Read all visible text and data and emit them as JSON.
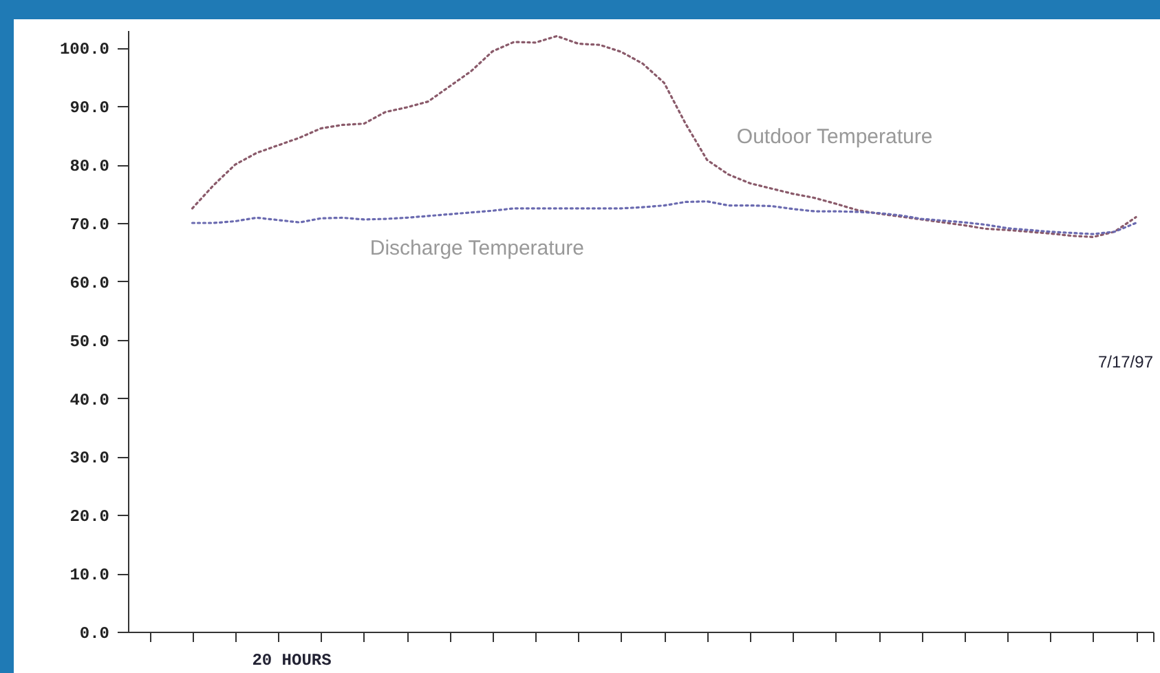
{
  "chart_data": {
    "type": "line",
    "annotations": [
      "7/17/97",
      "20 HOURS"
    ],
    "categories": [
      null,
      null,
      null,
      null,
      null,
      null,
      null,
      null,
      null,
      null,
      null,
      null,
      null,
      null,
      null,
      null,
      null,
      null,
      null,
      null,
      null,
      null,
      null,
      null,
      null,
      null,
      null,
      null,
      null,
      null,
      null,
      null,
      null,
      null,
      null,
      null,
      null,
      null,
      null,
      null,
      null,
      null,
      null,
      null,
      null
    ],
    "tick_labels": "y",
    "ylim": [
      0,
      103
    ],
    "yticks": [
      {
        "value": 0,
        "label": "0.0"
      },
      {
        "value": 10,
        "label": "10.0"
      },
      {
        "value": 20,
        "label": "20.0"
      },
      {
        "value": 30,
        "label": "30.0"
      },
      {
        "value": 40,
        "label": "40.0"
      },
      {
        "value": 50,
        "label": "50.0"
      },
      {
        "value": 60,
        "label": "60.0"
      },
      {
        "value": 70,
        "label": "70.0"
      },
      {
        "value": 80,
        "label": "80.0"
      },
      {
        "value": 90,
        "label": "90.0"
      },
      {
        "value": 100,
        "label": "100.0"
      }
    ],
    "grid": false,
    "legend": false,
    "line_style": "dotted",
    "marker": "none",
    "series": [
      {
        "name": "Outdoor Temperature",
        "color": "#8a5a6a",
        "values": [
          72.5,
          76.5,
          80,
          82,
          83.3,
          84.6,
          86.2,
          86.8,
          87,
          89,
          89.8,
          90.8,
          93.4,
          96,
          99.4,
          101,
          100.9,
          102,
          100.7,
          100.5,
          99.3,
          97.3,
          94,
          87,
          80.8,
          78.3,
          76.8,
          75.9,
          75,
          74.3,
          73.3,
          72.2,
          71.6,
          71.1,
          70.6,
          70.1,
          69.6,
          69,
          68.8,
          68.5,
          68.2,
          67.8,
          67.6,
          68.5,
          71
        ]
      },
      {
        "name": "Discharge Temperature",
        "color": "#6a6ab0",
        "values": [
          70,
          70,
          70.3,
          70.9,
          70.5,
          70.1,
          70.8,
          70.9,
          70.6,
          70.7,
          70.9,
          71.2,
          71.5,
          71.8,
          72.1,
          72.5,
          72.5,
          72.5,
          72.5,
          72.5,
          72.5,
          72.7,
          73,
          73.6,
          73.7,
          73,
          73,
          72.9,
          72.4,
          72,
          72,
          71.9,
          71.7,
          71.3,
          70.7,
          70.4,
          70.1,
          69.7,
          69.1,
          68.8,
          68.5,
          68.3,
          68.1,
          68.5,
          70
        ]
      }
    ]
  }
}
